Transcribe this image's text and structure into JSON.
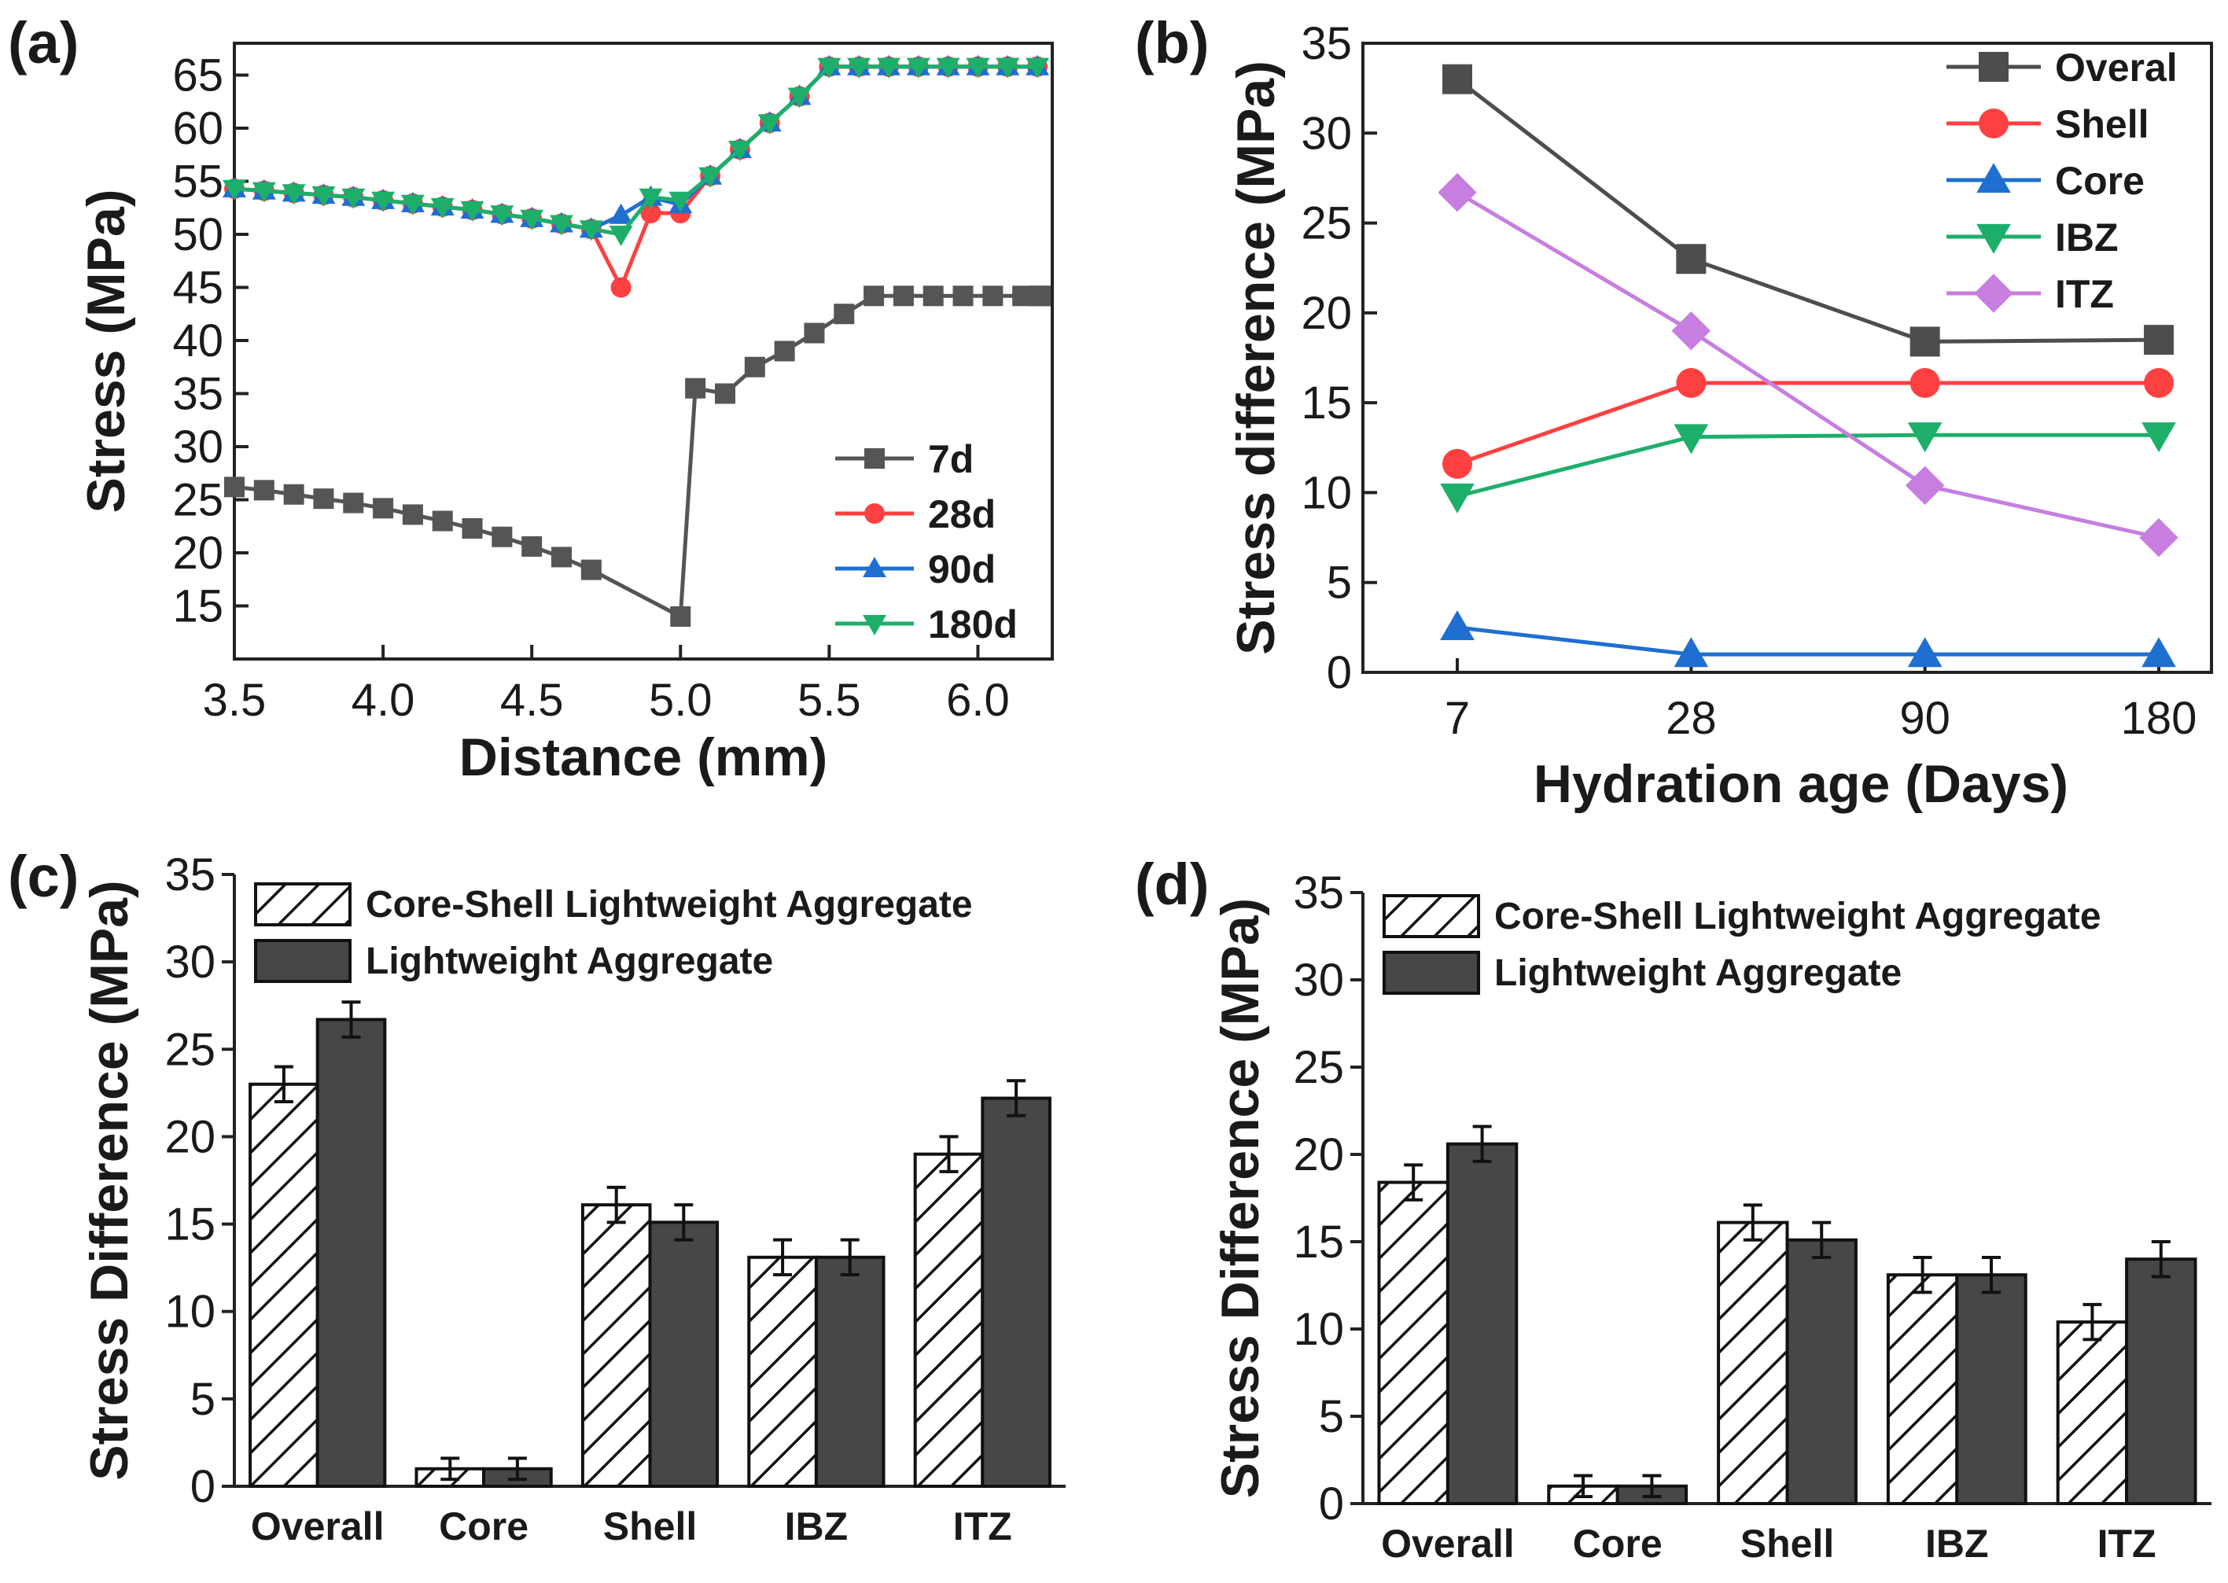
{
  "chart_data": [
    {
      "panel": "(a)",
      "type": "line",
      "xlabel": "Distance (mm)",
      "ylabel": "Stress (MPa)",
      "xlim": [
        3.5,
        6.25
      ],
      "ylim": [
        10,
        68
      ],
      "xticks": [
        3.5,
        4.0,
        4.5,
        5.0,
        5.5,
        6.0
      ],
      "xtick_labels": [
        "3.5",
        "4.0",
        "4.5",
        "5.0",
        "5.5",
        "6.0"
      ],
      "yticks": [
        15,
        20,
        25,
        30,
        35,
        40,
        45,
        50,
        55,
        60,
        65
      ],
      "ytick_labels": [
        "15",
        "20",
        "25",
        "30",
        "35",
        "40",
        "45",
        "50",
        "55",
        "60",
        "65"
      ],
      "x": [
        3.5,
        3.6,
        3.7,
        3.8,
        3.9,
        4.0,
        4.1,
        4.2,
        4.3,
        4.4,
        4.5,
        4.6,
        4.7,
        4.8,
        4.9,
        5.0,
        5.1,
        5.2,
        5.3,
        5.4,
        5.5,
        5.6,
        5.7,
        5.8,
        5.9,
        6.0,
        6.1,
        6.2
      ],
      "legend_position": "bottom-right",
      "series": [
        {
          "name": "7d",
          "color": "#555555",
          "marker": "square",
          "values": [
            26.2,
            25.9,
            25.5,
            25.1,
            24.7,
            24.2,
            23.6,
            23.0,
            22.3,
            21.5,
            20.6,
            19.6,
            18.4,
            14.0,
            35.5,
            35.0,
            37.5,
            39.0,
            40.7,
            42.5,
            44.2,
            44.2,
            44.2,
            44.2,
            44.2,
            44.2,
            44.2,
            44.2
          ],
          "x": [
            3.5,
            3.6,
            3.7,
            3.8,
            3.9,
            4.0,
            4.1,
            4.2,
            4.3,
            4.4,
            4.5,
            4.6,
            4.7,
            5.0,
            5.05,
            5.15,
            5.25,
            5.35,
            5.45,
            5.55,
            5.65,
            5.75,
            5.85,
            5.95,
            6.05,
            6.15,
            6.25,
            6.25
          ]
        },
        {
          "name": "28d",
          "color": "#ff4040",
          "marker": "circle",
          "values": [
            54.3,
            54.1,
            53.9,
            53.7,
            53.5,
            53.2,
            52.9,
            52.6,
            52.3,
            51.9,
            51.5,
            51.0,
            50.5,
            45.0,
            52.0,
            52.0,
            55.5,
            58.0,
            60.5,
            63.0,
            65.8,
            65.8,
            65.8,
            65.8,
            65.8,
            65.8,
            65.8,
            65.8
          ]
        },
        {
          "name": "90d",
          "color": "#1f6fd1",
          "marker": "triangle-up",
          "values": [
            54.3,
            54.1,
            53.9,
            53.7,
            53.5,
            53.2,
            52.9,
            52.6,
            52.3,
            51.9,
            51.5,
            51.0,
            50.5,
            51.8,
            53.5,
            52.8,
            55.5,
            58.0,
            60.5,
            63.0,
            65.8,
            65.8,
            65.8,
            65.8,
            65.8,
            65.8,
            65.8,
            65.8
          ]
        },
        {
          "name": "180d",
          "color": "#1daf6a",
          "marker": "triangle-down",
          "values": [
            54.3,
            54.1,
            53.9,
            53.7,
            53.5,
            53.2,
            52.9,
            52.6,
            52.3,
            51.9,
            51.5,
            51.0,
            50.5,
            50.0,
            53.5,
            53.2,
            55.5,
            58.0,
            60.5,
            63.0,
            65.8,
            65.8,
            65.8,
            65.8,
            65.8,
            65.8,
            65.8,
            65.8
          ]
        }
      ]
    },
    {
      "panel": "(b)",
      "type": "line",
      "xlabel": "Hydration age (Days)",
      "ylabel": "Stress difference (MPa)",
      "categories": [
        "7",
        "28",
        "90",
        "180"
      ],
      "ylim": [
        0,
        35
      ],
      "yticks": [
        0,
        5,
        10,
        15,
        20,
        25,
        30,
        35
      ],
      "ytick_labels": [
        "0",
        "5",
        "10",
        "15",
        "20",
        "25",
        "30",
        "35"
      ],
      "legend_position": "top-right",
      "series": [
        {
          "name": "Overal",
          "color": "#4d4d4d",
          "marker": "square",
          "values": [
            33.0,
            23.0,
            18.4,
            18.5
          ]
        },
        {
          "name": "Shell",
          "color": "#ff4040",
          "marker": "circle",
          "values": [
            11.6,
            16.1,
            16.1,
            16.1
          ]
        },
        {
          "name": "Core",
          "color": "#1f6fd1",
          "marker": "triangle-up",
          "values": [
            2.5,
            1.0,
            1.0,
            1.0
          ]
        },
        {
          "name": "IBZ",
          "color": "#1daf6a",
          "marker": "triangle-down",
          "values": [
            9.8,
            13.1,
            13.2,
            13.2
          ]
        },
        {
          "name": "ITZ",
          "color": "#c77ee0",
          "marker": "diamond",
          "values": [
            26.7,
            19.0,
            10.4,
            7.5
          ]
        }
      ]
    },
    {
      "panel": "(c)",
      "type": "bar",
      "xlabel": "",
      "ylabel": "Stress Difference (MPa)",
      "categories": [
        "Overall",
        "Core",
        "Shell",
        "IBZ",
        "ITZ"
      ],
      "ylim": [
        0,
        35
      ],
      "yticks": [
        0,
        5,
        10,
        15,
        20,
        25,
        30,
        35
      ],
      "ytick_labels": [
        "0",
        "5",
        "10",
        "15",
        "20",
        "25",
        "30",
        "35"
      ],
      "legend_position": "top",
      "series": [
        {
          "name": "Core-Shell Lightweight Aggregate",
          "fill": "hatched",
          "values": [
            23.0,
            1.0,
            16.1,
            13.1,
            19.0
          ],
          "errors": [
            1.0,
            0.6,
            1.0,
            1.0,
            1.0
          ]
        },
        {
          "name": "Lightweight Aggregate",
          "fill": "#474747",
          "values": [
            26.7,
            1.0,
            15.1,
            13.1,
            22.2
          ],
          "errors": [
            1.0,
            0.6,
            1.0,
            1.0,
            1.0
          ]
        }
      ]
    },
    {
      "panel": "(d)",
      "type": "bar",
      "xlabel": "",
      "ylabel": "Stress Difference (MPa)",
      "categories": [
        "Overall",
        "Core",
        "Shell",
        "IBZ",
        "ITZ"
      ],
      "ylim": [
        0,
        35
      ],
      "yticks": [
        0,
        5,
        10,
        15,
        20,
        25,
        30,
        35
      ],
      "ytick_labels": [
        "0",
        "5",
        "10",
        "15",
        "20",
        "25",
        "30",
        "35"
      ],
      "legend_position": "top",
      "series": [
        {
          "name": "Core-Shell Lightweight Aggregate",
          "fill": "hatched",
          "values": [
            18.4,
            1.0,
            16.1,
            13.1,
            10.4
          ],
          "errors": [
            1.0,
            0.6,
            1.0,
            1.0,
            1.0
          ]
        },
        {
          "name": "Lightweight Aggregate",
          "fill": "#474747",
          "values": [
            20.6,
            1.0,
            15.1,
            13.1,
            14.0
          ],
          "errors": [
            1.0,
            0.6,
            1.0,
            1.0,
            1.0
          ]
        }
      ]
    }
  ]
}
